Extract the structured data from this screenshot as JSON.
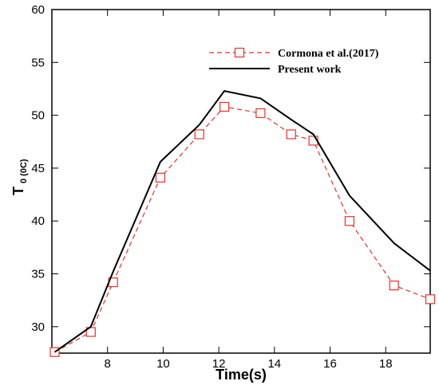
{
  "chart_data": {
    "type": "line",
    "title": "",
    "xlabel": "Time(s)",
    "ylabel": {
      "main": "T",
      "sub": "0 (0C)"
    },
    "xlim": [
      6,
      19.6
    ],
    "ylim": [
      27.5,
      60
    ],
    "xticks": [
      8,
      10,
      12,
      14,
      16,
      18
    ],
    "yticks": [
      30,
      35,
      40,
      45,
      50,
      55,
      60
    ],
    "grid": false,
    "legend_position": "top-right",
    "series": [
      {
        "name": "Cormona et al.(2017)",
        "color": "#e8302a",
        "style": "dashed",
        "marker": "square",
        "x": [
          6.1,
          7.4,
          8.2,
          9.9,
          11.3,
          12.2,
          13.5,
          14.6,
          15.4,
          16.7,
          18.3,
          19.6
        ],
        "y": [
          27.6,
          29.5,
          34.2,
          44.1,
          48.2,
          50.8,
          50.2,
          48.2,
          47.6,
          40.0,
          33.9,
          32.6
        ]
      },
      {
        "name": "Present work",
        "color": "#000000",
        "style": "solid",
        "marker": "none",
        "x": [
          6.1,
          7.4,
          8.2,
          9.9,
          11.3,
          12.2,
          13.5,
          14.6,
          15.4,
          16.7,
          18.3,
          19.6
        ],
        "y": [
          27.6,
          30.0,
          35.2,
          45.6,
          49.1,
          52.3,
          51.6,
          49.6,
          48.2,
          42.4,
          37.9,
          35.3
        ]
      }
    ]
  }
}
